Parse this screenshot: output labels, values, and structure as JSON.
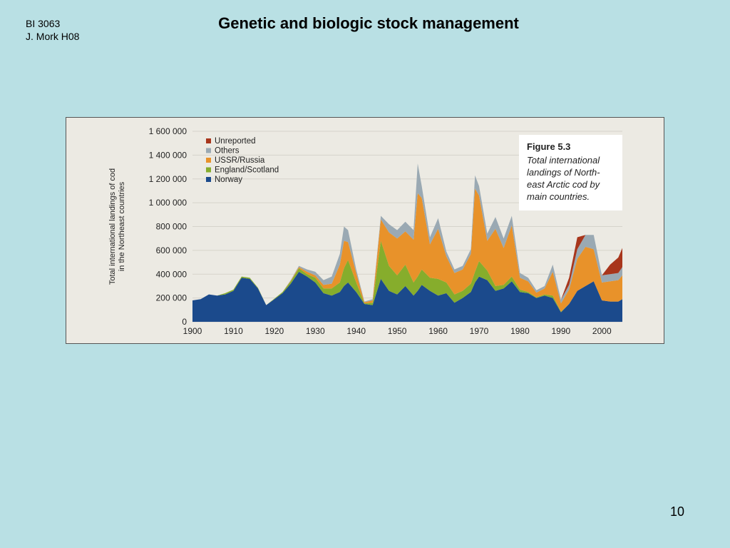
{
  "slide": {
    "course_lines": [
      "BI 3063",
      "J. Mork H08"
    ],
    "title": "Genetic and biologic stock management",
    "page_number": "10"
  },
  "figure": {
    "caption_title": "Figure 5.3",
    "caption_lines": [
      "Total international",
      "landings of North-",
      "east Arctic cod by",
      "main countries."
    ]
  },
  "chart_data": {
    "type": "area",
    "ylabel_lines": [
      "Total international landings of cod",
      "in the Northeast countries"
    ],
    "xlabel": "",
    "x_ticks": [
      1900,
      1910,
      1920,
      1930,
      1940,
      1950,
      1960,
      1970,
      1980,
      1990,
      2000
    ],
    "y_ticks": [
      0,
      200000,
      400000,
      600000,
      800000,
      1000000,
      1200000,
      1400000,
      1600000
    ],
    "y_tick_labels": [
      "0",
      "200 000",
      "400 000",
      "600 000",
      "800 000",
      "1 000 000",
      "1 200 000",
      "1 400 000",
      "1 600 000"
    ],
    "xlim": [
      1900,
      2005
    ],
    "ylim": [
      0,
      1600000
    ],
    "stacked": true,
    "grid": true,
    "legend_position": "top-left",
    "x": [
      1900,
      1902,
      1904,
      1906,
      1908,
      1910,
      1912,
      1914,
      1916,
      1918,
      1920,
      1922,
      1924,
      1926,
      1928,
      1930,
      1932,
      1934,
      1936,
      1937,
      1938,
      1940,
      1942,
      1944,
      1946,
      1948,
      1950,
      1952,
      1954,
      1955,
      1956,
      1958,
      1960,
      1962,
      1964,
      1966,
      1968,
      1969,
      1970,
      1972,
      1974,
      1976,
      1978,
      1980,
      1982,
      1984,
      1986,
      1988,
      1990,
      1992,
      1994,
      1996,
      1998,
      2000,
      2002,
      2004,
      2005
    ],
    "series": [
      {
        "name": "Norway",
        "color": "#1b4a8c",
        "values": [
          180000,
          190000,
          230000,
          220000,
          230000,
          260000,
          370000,
          360000,
          280000,
          140000,
          190000,
          240000,
          320000,
          420000,
          380000,
          330000,
          240000,
          220000,
          250000,
          300000,
          330000,
          250000,
          150000,
          140000,
          360000,
          260000,
          230000,
          300000,
          220000,
          260000,
          310000,
          260000,
          220000,
          240000,
          160000,
          200000,
          250000,
          330000,
          380000,
          350000,
          260000,
          280000,
          340000,
          250000,
          240000,
          200000,
          220000,
          200000,
          80000,
          150000,
          260000,
          300000,
          340000,
          180000,
          170000,
          170000,
          190000
        ]
      },
      {
        "name": "England/Scotland",
        "color": "#86ad2c",
        "values": [
          0,
          0,
          0,
          0,
          10000,
          10000,
          10000,
          10000,
          5000,
          0,
          5000,
          10000,
          20000,
          30000,
          20000,
          40000,
          40000,
          60000,
          80000,
          150000,
          190000,
          80000,
          5000,
          20000,
          320000,
          210000,
          160000,
          180000,
          110000,
          120000,
          130000,
          110000,
          140000,
          90000,
          70000,
          60000,
          70000,
          90000,
          130000,
          80000,
          40000,
          30000,
          40000,
          20000,
          10000,
          5000,
          10000,
          20000,
          5000,
          0,
          0,
          0,
          0,
          0,
          0,
          0,
          0
        ]
      },
      {
        "name": "USSR/Russia",
        "color": "#e8922a",
        "values": [
          0,
          0,
          0,
          0,
          0,
          0,
          0,
          0,
          0,
          0,
          0,
          0,
          5000,
          10000,
          20000,
          20000,
          30000,
          40000,
          150000,
          230000,
          150000,
          80000,
          10000,
          20000,
          180000,
          280000,
          310000,
          280000,
          360000,
          700000,
          600000,
          280000,
          420000,
          220000,
          180000,
          180000,
          250000,
          700000,
          550000,
          250000,
          480000,
          310000,
          430000,
          100000,
          90000,
          40000,
          50000,
          200000,
          70000,
          120000,
          270000,
          330000,
          270000,
          150000,
          170000,
          180000,
          200000
        ]
      },
      {
        "name": "Others",
        "color": "#9aa9b3",
        "values": [
          0,
          0,
          0,
          0,
          0,
          0,
          0,
          0,
          0,
          0,
          0,
          0,
          5000,
          10000,
          20000,
          30000,
          40000,
          60000,
          90000,
          120000,
          100000,
          30000,
          5000,
          10000,
          30000,
          70000,
          70000,
          80000,
          80000,
          250000,
          100000,
          60000,
          90000,
          40000,
          30000,
          30000,
          40000,
          110000,
          80000,
          60000,
          100000,
          80000,
          80000,
          40000,
          30000,
          20000,
          20000,
          60000,
          30000,
          40000,
          80000,
          100000,
          120000,
          60000,
          60000,
          60000,
          70000
        ]
      },
      {
        "name": "Unreported",
        "color": "#a8361c",
        "values": [
          0,
          0,
          0,
          0,
          0,
          0,
          0,
          0,
          0,
          0,
          0,
          0,
          0,
          0,
          0,
          0,
          0,
          0,
          0,
          0,
          0,
          0,
          0,
          0,
          0,
          0,
          0,
          0,
          0,
          0,
          0,
          0,
          0,
          0,
          0,
          0,
          0,
          0,
          0,
          0,
          0,
          0,
          0,
          0,
          0,
          0,
          0,
          0,
          0,
          60000,
          100000,
          0,
          0,
          0,
          80000,
          130000,
          160000
        ]
      }
    ]
  }
}
